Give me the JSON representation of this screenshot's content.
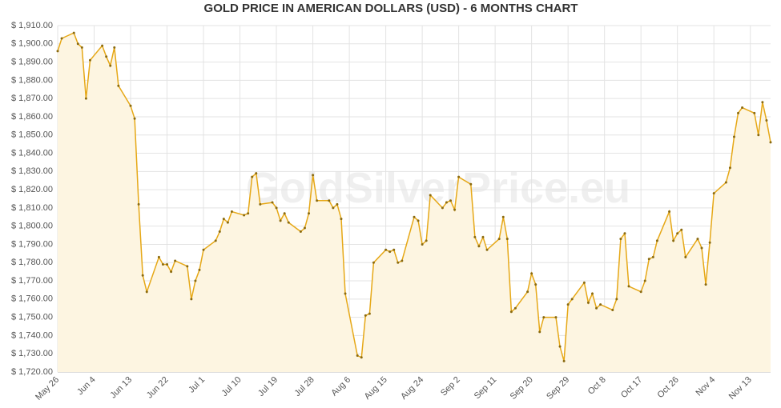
{
  "chart_data": {
    "type": "line",
    "title": "GOLD PRICE IN AMERICAN DOLLARS (USD) - 6 MONTHS CHART",
    "watermark": "GoldSilverPrice.eu",
    "x": [
      "May 26",
      "May 27",
      "May 30",
      "May 31",
      "Jun 1",
      "Jun 2",
      "Jun 3",
      "Jun 6",
      "Jun 7",
      "Jun 8",
      "Jun 9",
      "Jun 10",
      "Jun 13",
      "Jun 14",
      "Jun 15",
      "Jun 16",
      "Jun 17",
      "Jun 20",
      "Jun 21",
      "Jun 22",
      "Jun 23",
      "Jun 24",
      "Jun 27",
      "Jun 28",
      "Jun 29",
      "Jun 30",
      "Jul 1",
      "Jul 4",
      "Jul 5",
      "Jul 6",
      "Jul 7",
      "Jul 8",
      "Jul 11",
      "Jul 12",
      "Jul 13",
      "Jul 14",
      "Jul 15",
      "Jul 18",
      "Jul 19",
      "Jul 20",
      "Jul 21",
      "Jul 22",
      "Jul 25",
      "Jul 26",
      "Jul 27",
      "Jul 28",
      "Jul 29",
      "Aug 1",
      "Aug 2",
      "Aug 3",
      "Aug 4",
      "Aug 5",
      "Aug 8",
      "Aug 9",
      "Aug 10",
      "Aug 11",
      "Aug 12",
      "Aug 15",
      "Aug 16",
      "Aug 17",
      "Aug 18",
      "Aug 19",
      "Aug 22",
      "Aug 23",
      "Aug 24",
      "Aug 25",
      "Aug 26",
      "Aug 29",
      "Aug 30",
      "Aug 31",
      "Sep 1",
      "Sep 2",
      "Sep 5",
      "Sep 6",
      "Sep 7",
      "Sep 8",
      "Sep 9",
      "Sep 12",
      "Sep 13",
      "Sep 14",
      "Sep 15",
      "Sep 16",
      "Sep 19",
      "Sep 20",
      "Sep 21",
      "Sep 22",
      "Sep 23",
      "Sep 26",
      "Sep 27",
      "Sep 28",
      "Sep 29",
      "Sep 30",
      "Oct 3",
      "Oct 4",
      "Oct 5",
      "Oct 6",
      "Oct 7",
      "Oct 10",
      "Oct 11",
      "Oct 12",
      "Oct 13",
      "Oct 14",
      "Oct 17",
      "Oct 18",
      "Oct 19",
      "Oct 20",
      "Oct 21",
      "Oct 24",
      "Oct 25",
      "Oct 26",
      "Oct 27",
      "Oct 28",
      "Oct 31",
      "Nov 1",
      "Nov 2",
      "Nov 3",
      "Nov 4",
      "Nov 7",
      "Nov 8",
      "Nov 9",
      "Nov 10",
      "Nov 11",
      "Nov 14",
      "Nov 15",
      "Nov 16",
      "Nov 17",
      "Nov 18"
    ],
    "series": [
      {
        "name": "Gold",
        "color": "#e6a817",
        "fill": "#fdf5e1",
        "values": [
          1896,
          1903,
          1906,
          1900,
          1898,
          1870,
          1891,
          1899,
          1893,
          1888,
          1898,
          1877,
          1866,
          1859,
          1812,
          1773,
          1764,
          1783,
          1779,
          1779,
          1775,
          1781,
          1778,
          1760,
          1770,
          1776,
          1787,
          1792,
          1797,
          1804,
          1802,
          1808,
          1806,
          1807,
          1827,
          1829,
          1812,
          1813,
          1810,
          1803,
          1807,
          1802,
          1797,
          1799,
          1807,
          1828,
          1814,
          1814,
          1810,
          1812,
          1804,
          1763,
          1729,
          1728,
          1751,
          1752,
          1780,
          1787,
          1786,
          1787,
          1780,
          1781,
          1805,
          1803,
          1790,
          1792,
          1817,
          1810,
          1813,
          1814,
          1809,
          1827,
          1823,
          1794,
          1789,
          1794,
          1787,
          1793,
          1805,
          1793,
          1753,
          1755,
          1764,
          1774,
          1768,
          1742,
          1750,
          1750,
          1734,
          1726,
          1757,
          1760,
          1769,
          1758,
          1763,
          1755,
          1757,
          1754,
          1760,
          1793,
          1796,
          1767,
          1764,
          1770,
          1782,
          1783,
          1792,
          1808,
          1792,
          1796,
          1798,
          1783,
          1793,
          1788,
          1768,
          1791,
          1818,
          1824,
          1832,
          1849,
          1862,
          1865,
          1862,
          1850,
          1868,
          1858,
          1846
        ]
      }
    ],
    "xlim": [
      "May 26",
      "Nov 18"
    ],
    "xticks": [
      "May 26",
      "Jun 4",
      "Jun 13",
      "Jun 22",
      "Jul 1",
      "Jul 10",
      "Jul 19",
      "Jul 28",
      "Aug 6",
      "Aug 15",
      "Aug 24",
      "Sep 2",
      "Sep 11",
      "Sep 20",
      "Sep 29",
      "Oct 8",
      "Oct 17",
      "Oct 26",
      "Nov 4",
      "Nov 13"
    ],
    "ylim": [
      1720,
      1910
    ],
    "yticks": [
      {
        "value": 1720,
        "label": "$ 1,720.00"
      },
      {
        "value": 1730,
        "label": "$ 1,730.00"
      },
      {
        "value": 1740,
        "label": "$ 1,740.00"
      },
      {
        "value": 1750,
        "label": "$ 1,750.00"
      },
      {
        "value": 1760,
        "label": "$ 1,760.00"
      },
      {
        "value": 1770,
        "label": "$ 1,770.00"
      },
      {
        "value": 1780,
        "label": "$ 1,780.00"
      },
      {
        "value": 1790,
        "label": "$ 1,790.00"
      },
      {
        "value": 1800,
        "label": "$ 1,800.00"
      },
      {
        "value": 1810,
        "label": "$ 1,810.00"
      },
      {
        "value": 1820,
        "label": "$ 1,820.00"
      },
      {
        "value": 1830,
        "label": "$ 1,830.00"
      },
      {
        "value": 1840,
        "label": "$ 1,840.00"
      },
      {
        "value": 1850,
        "label": "$ 1,850.00"
      },
      {
        "value": 1860,
        "label": "$ 1,860.00"
      },
      {
        "value": 1870,
        "label": "$ 1,870.00"
      },
      {
        "value": 1880,
        "label": "$ 1,880.00"
      },
      {
        "value": 1890,
        "label": "$ 1,890.00"
      },
      {
        "value": 1900,
        "label": "$ 1,900.00"
      },
      {
        "value": 1910,
        "label": "$ 1,910.00"
      }
    ],
    "grid": true
  }
}
